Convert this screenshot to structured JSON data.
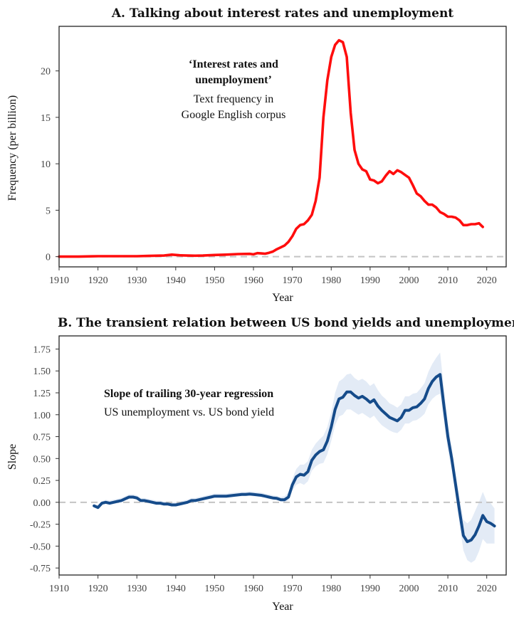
{
  "chart_data": [
    {
      "id": "A",
      "type": "line",
      "title": "A. Talking about interest rates and unemployment",
      "xlabel": "Year",
      "ylabel": "Frequency (per billion)",
      "xlim": [
        1910,
        2025
      ],
      "ylim": [
        -1.1,
        24.8
      ],
      "xticks": [
        1910,
        1920,
        1930,
        1940,
        1950,
        1960,
        1970,
        1980,
        1990,
        2000,
        2010,
        2020
      ],
      "yticks": [
        0,
        5,
        10,
        15,
        20
      ],
      "grid": false,
      "zero_line": true,
      "line_color": "#ff0d0d",
      "annotation": {
        "bold_lines": [
          "‘Interest rates and",
          "unemployment’"
        ],
        "lines": [
          "Text frequency in",
          "Google English corpus"
        ]
      },
      "series": [
        {
          "x": [
            1910,
            1915,
            1920,
            1925,
            1930,
            1933,
            1935,
            1937,
            1939,
            1941,
            1943,
            1945,
            1947,
            1950,
            1953,
            1956,
            1959,
            1960,
            1961,
            1962,
            1963,
            1964,
            1965,
            1966,
            1967,
            1968,
            1969,
            1970,
            1971,
            1972,
            1973,
            1974,
            1975,
            1976,
            1977,
            1978,
            1979,
            1980,
            1981,
            1982,
            1983,
            1984,
            1985,
            1986,
            1987,
            1988,
            1989,
            1990,
            1991,
            1992,
            1993,
            1994,
            1995,
            1996,
            1997,
            1998,
            1999,
            2000,
            2001,
            2002,
            2003,
            2004,
            2005,
            2006,
            2007,
            2008,
            2009,
            2010,
            2011,
            2012,
            2013,
            2014,
            2015,
            2016,
            2017,
            2018,
            2019
          ],
          "y": [
            0,
            0,
            0.05,
            0.05,
            0.05,
            0.08,
            0.1,
            0.12,
            0.22,
            0.15,
            0.12,
            0.1,
            0.12,
            0.18,
            0.22,
            0.28,
            0.3,
            0.25,
            0.38,
            0.35,
            0.32,
            0.42,
            0.55,
            0.8,
            1.0,
            1.2,
            1.6,
            2.2,
            3.0,
            3.4,
            3.5,
            3.9,
            4.5,
            6.0,
            8.5,
            15.0,
            19.0,
            21.5,
            22.8,
            23.3,
            23.1,
            21.5,
            15.5,
            11.5,
            10.0,
            9.4,
            9.2,
            8.3,
            8.2,
            7.9,
            8.1,
            8.7,
            9.2,
            8.9,
            9.3,
            9.1,
            8.8,
            8.5,
            7.7,
            6.8,
            6.5,
            6.0,
            5.6,
            5.6,
            5.3,
            4.8,
            4.6,
            4.3,
            4.3,
            4.2,
            3.9,
            3.4,
            3.4,
            3.5,
            3.5,
            3.6,
            3.2
          ]
        }
      ]
    },
    {
      "id": "B",
      "type": "line",
      "title": "B. The transient relation between US bond yields and unemployment",
      "xlabel": "Year",
      "ylabel": "Slope",
      "xlim": [
        1910,
        2025
      ],
      "ylim": [
        -0.83,
        1.9
      ],
      "xticks": [
        1910,
        1920,
        1930,
        1940,
        1950,
        1960,
        1970,
        1980,
        1990,
        2000,
        2010,
        2020
      ],
      "yticks": [
        -0.75,
        -0.5,
        -0.25,
        0.0,
        0.25,
        0.5,
        0.75,
        1.0,
        1.25,
        1.5,
        1.75
      ],
      "ytick_labels": [
        "-0.75",
        "-0.50",
        "-0.25",
        "0.00",
        "0.25",
        "0.50",
        "0.75",
        "1.00",
        "1.25",
        "1.50",
        "1.75"
      ],
      "grid": false,
      "zero_line": true,
      "line_color": "#154b8a",
      "band_color": "#e3ebf6",
      "annotation": {
        "bold_lines": [
          "Slope of trailing 30-year regression"
        ],
        "lines": [
          "US unemployment vs. US bond yield"
        ]
      },
      "series": [
        {
          "x": [
            1919,
            1920,
            1921,
            1922,
            1923,
            1924,
            1925,
            1926,
            1927,
            1928,
            1929,
            1930,
            1931,
            1932,
            1933,
            1934,
            1935,
            1936,
            1937,
            1938,
            1939,
            1940,
            1941,
            1942,
            1943,
            1944,
            1945,
            1946,
            1947,
            1948,
            1949,
            1950,
            1951,
            1952,
            1953,
            1954,
            1955,
            1956,
            1957,
            1958,
            1959,
            1960,
            1961,
            1962,
            1963,
            1964,
            1965,
            1966,
            1967,
            1968,
            1969,
            1970,
            1971,
            1972,
            1973,
            1974,
            1975,
            1976,
            1977,
            1978,
            1979,
            1980,
            1981,
            1982,
            1983,
            1984,
            1985,
            1986,
            1987,
            1988,
            1989,
            1990,
            1991,
            1992,
            1993,
            1994,
            1995,
            1996,
            1997,
            1998,
            1999,
            2000,
            2001,
            2002,
            2003,
            2004,
            2005,
            2006,
            2007,
            2008,
            2009,
            2010,
            2011,
            2012,
            2013,
            2014,
            2015,
            2016,
            2017,
            2018,
            2019,
            2020,
            2021,
            2022
          ],
          "y": [
            -0.04,
            -0.06,
            -0.01,
            0.0,
            -0.01,
            0.0,
            0.01,
            0.02,
            0.04,
            0.06,
            0.06,
            0.05,
            0.02,
            0.02,
            0.01,
            0.0,
            -0.01,
            -0.01,
            -0.02,
            -0.02,
            -0.03,
            -0.03,
            -0.02,
            -0.01,
            0.0,
            0.02,
            0.02,
            0.03,
            0.04,
            0.05,
            0.06,
            0.07,
            0.07,
            0.07,
            0.07,
            0.075,
            0.08,
            0.085,
            0.09,
            0.09,
            0.095,
            0.09,
            0.085,
            0.08,
            0.07,
            0.06,
            0.05,
            0.045,
            0.03,
            0.03,
            0.06,
            0.2,
            0.29,
            0.32,
            0.31,
            0.35,
            0.48,
            0.54,
            0.58,
            0.6,
            0.7,
            0.86,
            1.06,
            1.18,
            1.2,
            1.26,
            1.26,
            1.22,
            1.19,
            1.21,
            1.18,
            1.14,
            1.17,
            1.1,
            1.05,
            1.01,
            0.97,
            0.95,
            0.93,
            0.97,
            1.05,
            1.05,
            1.08,
            1.09,
            1.13,
            1.18,
            1.3,
            1.38,
            1.43,
            1.46,
            1.1,
            0.75,
            0.5,
            0.2,
            -0.1,
            -0.38,
            -0.45,
            -0.43,
            -0.37,
            -0.27,
            -0.15,
            -0.22,
            -0.24,
            -0.27
          ],
          "lower": [
            -0.06,
            -0.08,
            -0.03,
            -0.02,
            -0.03,
            -0.02,
            -0.01,
            0.0,
            0.02,
            0.04,
            0.04,
            0.03,
            0.0,
            0.0,
            -0.01,
            -0.02,
            -0.03,
            -0.03,
            -0.04,
            -0.04,
            -0.05,
            -0.05,
            -0.04,
            -0.03,
            -0.02,
            0.0,
            0.0,
            0.01,
            0.02,
            0.03,
            0.04,
            0.05,
            0.05,
            0.05,
            0.05,
            0.055,
            0.06,
            0.065,
            0.07,
            0.07,
            0.075,
            0.07,
            0.065,
            0.06,
            0.05,
            0.04,
            0.03,
            0.025,
            0.01,
            0.0,
            0.02,
            0.13,
            0.2,
            0.22,
            0.2,
            0.24,
            0.36,
            0.41,
            0.44,
            0.45,
            0.55,
            0.7,
            0.88,
            0.98,
            1.0,
            1.06,
            1.06,
            1.03,
            1.0,
            1.02,
            0.99,
            0.96,
            0.99,
            0.93,
            0.88,
            0.85,
            0.82,
            0.8,
            0.79,
            0.83,
            0.9,
            0.9,
            0.93,
            0.94,
            0.97,
            1.01,
            1.12,
            1.18,
            1.22,
            1.24,
            0.92,
            0.6,
            0.37,
            0.07,
            -0.25,
            -0.55,
            -0.66,
            -0.69,
            -0.66,
            -0.56,
            -0.42,
            -0.47,
            -0.47,
            -0.47
          ],
          "upper": [
            -0.02,
            -0.03,
            0.01,
            0.03,
            0.02,
            0.03,
            0.04,
            0.05,
            0.07,
            0.09,
            0.09,
            0.08,
            0.05,
            0.05,
            0.04,
            0.03,
            0.02,
            0.02,
            0.01,
            0.01,
            0.0,
            0.0,
            0.01,
            0.02,
            0.03,
            0.05,
            0.05,
            0.06,
            0.07,
            0.08,
            0.09,
            0.1,
            0.1,
            0.1,
            0.1,
            0.105,
            0.11,
            0.115,
            0.12,
            0.12,
            0.125,
            0.12,
            0.115,
            0.11,
            0.1,
            0.09,
            0.08,
            0.075,
            0.06,
            0.07,
            0.11,
            0.27,
            0.38,
            0.43,
            0.43,
            0.47,
            0.6,
            0.67,
            0.72,
            0.76,
            0.86,
            1.03,
            1.25,
            1.38,
            1.41,
            1.46,
            1.47,
            1.42,
            1.39,
            1.41,
            1.38,
            1.33,
            1.36,
            1.28,
            1.22,
            1.18,
            1.13,
            1.11,
            1.08,
            1.12,
            1.21,
            1.21,
            1.24,
            1.25,
            1.3,
            1.36,
            1.49,
            1.58,
            1.65,
            1.71,
            1.3,
            0.91,
            0.63,
            0.33,
            0.05,
            -0.2,
            -0.24,
            -0.2,
            -0.1,
            0.0,
            0.12,
            0.01,
            -0.01,
            -0.07
          ]
        }
      ]
    }
  ]
}
